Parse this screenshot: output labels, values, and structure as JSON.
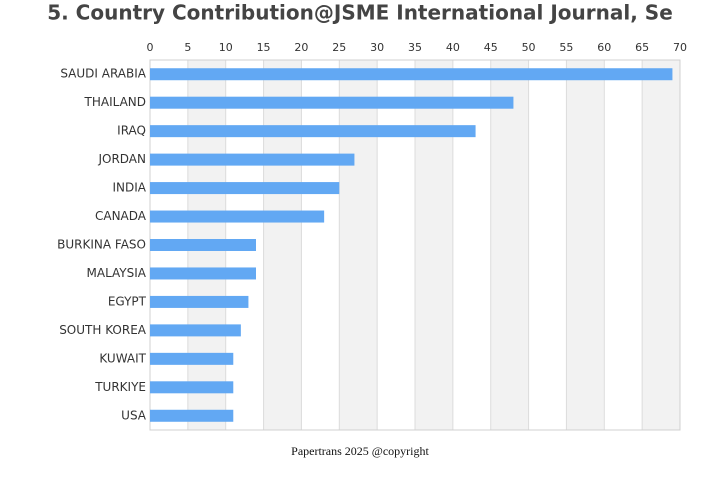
{
  "chart_data": {
    "type": "barh",
    "title": "5. Country Contribution@JSME International Journal, Se",
    "categories": [
      "SAUDI ARABIA",
      "THAILAND",
      "IRAQ",
      "JORDAN",
      "INDIA",
      "CANADA",
      "BURKINA FASO",
      "MALAYSIA",
      "EGYPT",
      "SOUTH KOREA",
      "KUWAIT",
      "TURKIYE",
      "USA"
    ],
    "values": [
      69,
      48,
      43,
      27,
      25,
      23,
      14,
      14,
      13,
      12,
      11,
      11,
      11
    ],
    "color": "#62a8f3",
    "xlim": [
      0,
      70
    ],
    "xticks": [
      0,
      5,
      10,
      15,
      20,
      25,
      30,
      35,
      40,
      45,
      50,
      55,
      60,
      65,
      70
    ],
    "grid": true,
    "alternating_bands": true,
    "footer": "Papertrans 2025 @copyright"
  }
}
